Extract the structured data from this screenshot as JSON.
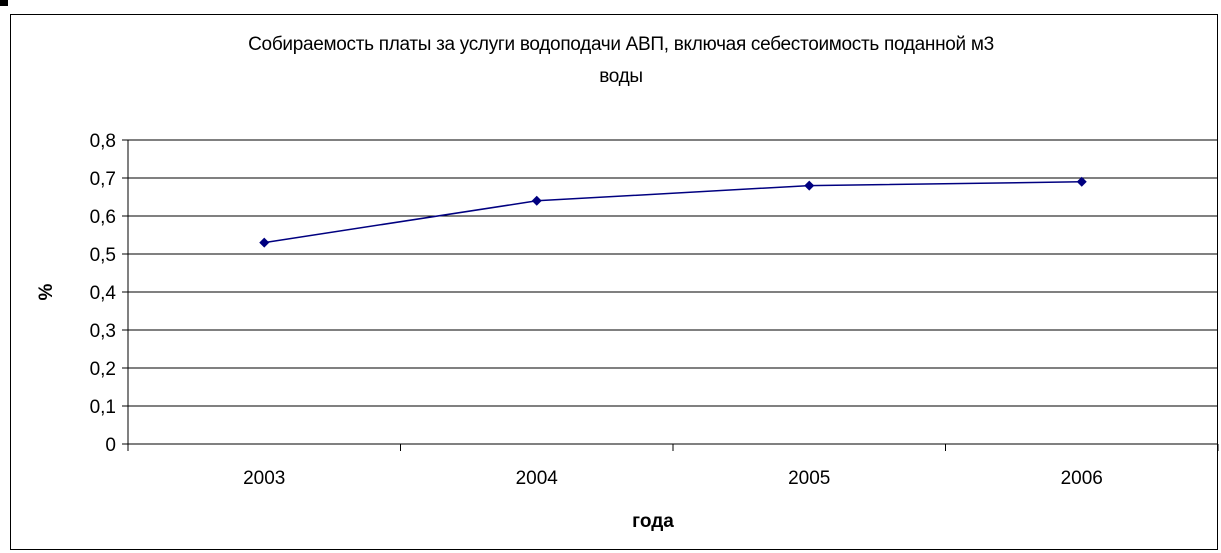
{
  "chart_data": {
    "type": "line",
    "title_line1": "Собираемость платы за услуги водоподачи АВП, включая себестоимость поданной м3",
    "title_line2": "воды",
    "xlabel": "года",
    "ylabel": "%",
    "categories": [
      "2003",
      "2004",
      "2005",
      "2006"
    ],
    "series": [
      {
        "values": [
          0.53,
          0.64,
          0.68,
          0.69
        ]
      }
    ],
    "ylim": [
      0,
      0.8
    ],
    "yticks": [
      "0",
      "0,1",
      "0,2",
      "0,3",
      "0,4",
      "0,5",
      "0,6",
      "0,7",
      "0,8"
    ],
    "grid": true,
    "legend": "none",
    "line_color": "#000080",
    "marker": "diamond"
  }
}
